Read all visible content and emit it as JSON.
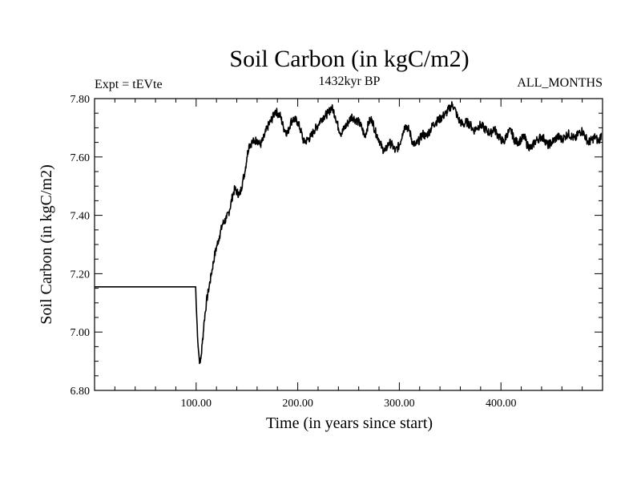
{
  "chart_data": {
    "type": "line",
    "title": "Soil Carbon (in kgC/m2)",
    "subtitle_left": "Expt = tEVte",
    "subtitle_center": "1432kyr BP",
    "subtitle_right": "ALL_MONTHS",
    "xlabel": "Time (in years since start)",
    "ylabel": "Soil Carbon (in kgC/m2)",
    "xlim": [
      0,
      500
    ],
    "ylim": [
      6.8,
      7.8
    ],
    "x_ticks": [
      100,
      200,
      300,
      400
    ],
    "x_tick_labels": [
      "100.00",
      "200.00",
      "300.00",
      "400.00"
    ],
    "y_ticks": [
      6.8,
      7.0,
      7.2,
      7.4,
      7.6,
      7.8
    ],
    "y_tick_labels": [
      "6.80",
      "7.00",
      "7.20",
      "7.40",
      "7.60",
      "7.80"
    ],
    "grid": false,
    "series": [
      {
        "name": "Soil Carbon",
        "color": "#000000",
        "x": [
          0,
          99.5,
          100,
          101,
          102,
          103,
          104,
          105,
          106,
          108,
          110,
          112,
          115,
          118,
          120,
          123,
          126,
          130,
          133,
          136,
          138,
          140,
          143,
          146,
          148,
          150,
          152,
          155,
          158,
          160,
          163,
          166,
          170,
          173,
          176,
          178,
          180,
          183,
          186,
          190,
          193,
          196,
          200,
          203,
          206,
          210,
          213,
          216,
          220,
          223,
          226,
          230,
          233,
          235,
          237,
          240,
          243,
          246,
          250,
          253,
          256,
          260,
          263,
          266,
          270,
          273,
          276,
          280,
          283,
          286,
          290,
          293,
          296,
          300,
          303,
          306,
          310,
          313,
          316,
          320,
          323,
          326,
          330,
          333,
          336,
          340,
          343,
          346,
          350,
          352,
          354,
          356,
          358,
          360,
          363,
          366,
          370,
          373,
          376,
          380,
          383,
          386,
          390,
          393,
          396,
          400,
          403,
          406,
          410,
          413,
          416,
          420,
          423,
          426,
          430,
          433,
          436,
          440,
          443,
          446,
          450,
          453,
          456,
          460,
          463,
          466,
          470,
          473,
          476,
          480,
          483,
          486,
          490,
          493,
          496,
          499
        ],
        "y": [
          7.155,
          7.155,
          7.1,
          7.02,
          6.95,
          6.91,
          6.895,
          6.92,
          6.96,
          7.04,
          7.1,
          7.14,
          7.2,
          7.26,
          7.29,
          7.33,
          7.37,
          7.39,
          7.42,
          7.47,
          7.49,
          7.48,
          7.47,
          7.52,
          7.55,
          7.6,
          7.64,
          7.65,
          7.655,
          7.66,
          7.64,
          7.66,
          7.7,
          7.72,
          7.74,
          7.76,
          7.75,
          7.74,
          7.7,
          7.68,
          7.72,
          7.73,
          7.72,
          7.69,
          7.65,
          7.66,
          7.67,
          7.69,
          7.71,
          7.73,
          7.74,
          7.75,
          7.77,
          7.76,
          7.74,
          7.7,
          7.68,
          7.7,
          7.72,
          7.74,
          7.73,
          7.72,
          7.7,
          7.67,
          7.72,
          7.73,
          7.69,
          7.66,
          7.63,
          7.62,
          7.65,
          7.64,
          7.62,
          7.64,
          7.68,
          7.71,
          7.69,
          7.65,
          7.64,
          7.66,
          7.68,
          7.67,
          7.69,
          7.71,
          7.72,
          7.73,
          7.74,
          7.75,
          7.77,
          7.78,
          7.77,
          7.75,
          7.73,
          7.72,
          7.71,
          7.72,
          7.71,
          7.69,
          7.7,
          7.71,
          7.7,
          7.69,
          7.68,
          7.7,
          7.68,
          7.66,
          7.65,
          7.68,
          7.69,
          7.66,
          7.65,
          7.66,
          7.67,
          7.64,
          7.63,
          7.65,
          7.66,
          7.67,
          7.66,
          7.64,
          7.65,
          7.66,
          7.67,
          7.66,
          7.67,
          7.68,
          7.67,
          7.66,
          7.68,
          7.69,
          7.67,
          7.65,
          7.66,
          7.67,
          7.65,
          7.68
        ]
      }
    ]
  }
}
